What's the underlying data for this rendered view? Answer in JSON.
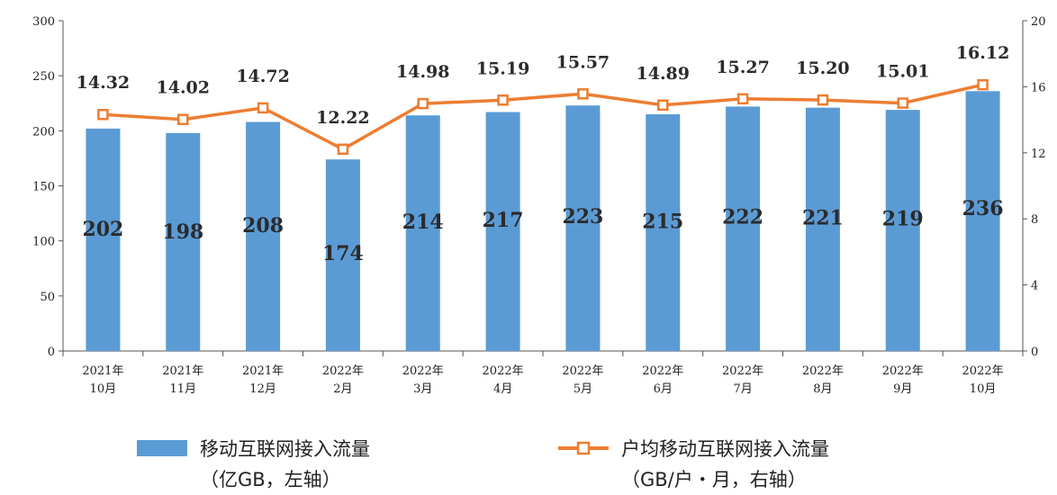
{
  "chart_data": {
    "type": "bar",
    "categories": [
      [
        "2021年",
        "10月"
      ],
      [
        "2021年",
        "11月"
      ],
      [
        "2021年",
        "12月"
      ],
      [
        "2022年",
        "2月"
      ],
      [
        "2022年",
        "3月"
      ],
      [
        "2022年",
        "4月"
      ],
      [
        "2022年",
        "5月"
      ],
      [
        "2022年",
        "6月"
      ],
      [
        "2022年",
        "7月"
      ],
      [
        "2022年",
        "8月"
      ],
      [
        "2022年",
        "9月"
      ],
      [
        "2022年",
        "10月"
      ]
    ],
    "series": [
      {
        "name": "移动互联网接入流量",
        "name_line2": "（亿GB，左轴）",
        "type": "bar",
        "axis": "left",
        "color": "#5b9bd5",
        "values": [
          202,
          198,
          208,
          174,
          214,
          217,
          223,
          215,
          222,
          221,
          219,
          236
        ],
        "labels": [
          "202",
          "198",
          "208",
          "174",
          "214",
          "217",
          "223",
          "215",
          "222",
          "221",
          "219",
          "236"
        ]
      },
      {
        "name": "户均移动互联网接入流量",
        "name_line2": "（GB/户・月，右轴）",
        "type": "line",
        "axis": "right",
        "color": "#ed7d31",
        "marker": "square",
        "values": [
          14.32,
          14.02,
          14.72,
          12.22,
          14.98,
          15.19,
          15.57,
          14.89,
          15.27,
          15.2,
          15.01,
          16.12
        ],
        "labels": [
          "14.32",
          "14.02",
          "14.72",
          "12.22",
          "14.98",
          "15.19",
          "15.57",
          "14.89",
          "15.27",
          "15.20",
          "15.01",
          "16.12"
        ]
      }
    ],
    "y_left": {
      "min": 0,
      "max": 300,
      "ticks": [
        "0",
        "50",
        "100",
        "150",
        "200",
        "250",
        "300"
      ]
    },
    "y_right": {
      "min": 0,
      "max": 20,
      "ticks": [
        "0",
        "4",
        "8",
        "12",
        "16",
        "20"
      ]
    },
    "grid": false,
    "legend_position": "bottom"
  }
}
